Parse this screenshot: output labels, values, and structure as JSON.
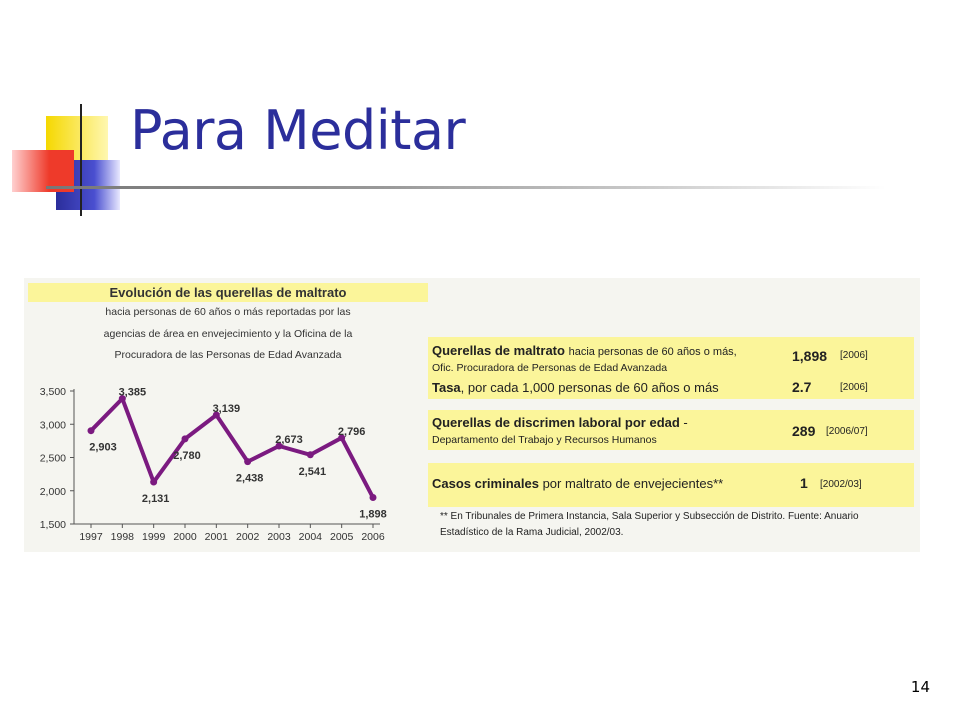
{
  "slide": {
    "title": "Para Meditar",
    "page_number": "14",
    "accent_colors": {
      "yellow": "#f5d800",
      "red": "#ee3a2a",
      "blue": "#2b2e9b"
    }
  },
  "chart_data": {
    "type": "line",
    "title": "Evolución de las querellas de maltrato",
    "subtitle_lines": [
      "hacia personas de 60 años o más reportadas por las",
      "agencias de área en envejecimiento y la Oficina de la",
      "Procuradora de las Personas de Edad Avanzada"
    ],
    "categories": [
      "1997",
      "1998",
      "1999",
      "2000",
      "2001",
      "2002",
      "2003",
      "2004",
      "2005",
      "2006"
    ],
    "series": [
      {
        "values": [
          2903,
          3385,
          2131,
          2780,
          3139,
          2438,
          2673,
          2541,
          2796,
          1898
        ],
        "color": "#7b1a80"
      }
    ],
    "data_labels": [
      "2,903",
      "3,385",
      "2,131",
      "2,780",
      "3,139",
      "2,438",
      "2,673",
      "2,541",
      "2,796",
      "1,898"
    ],
    "ylim": [
      1500,
      3500
    ],
    "yticks": [
      "3,500",
      "3,000",
      "2,500",
      "2,000",
      "1,500"
    ],
    "grid": false
  },
  "side_table": {
    "row1": {
      "label_bold": "Querellas de maltrato",
      "label_rest": "hacia personas de 60 años o más,",
      "line2": "Ofic. Procuradora de Personas de Edad Avanzada",
      "value": "1,898",
      "year": "[2006]"
    },
    "row1b": {
      "label_bold": "Tasa",
      "label_rest": ", por cada 1,000 personas de 60 años o más",
      "value": "2.7",
      "year": "[2006]"
    },
    "row2": {
      "label_bold": "Querellas de discrimen laboral por edad",
      "label_rest": " -",
      "line2": "Departamento del Trabajo y Recursos Humanos",
      "value": "289",
      "year": "[2006/07]"
    },
    "row3": {
      "label_bold": "Casos criminales",
      "label_rest": " por maltrato de envejecientes**",
      "value": "1",
      "year": "[2002/03]"
    },
    "footnote_line1": "** En Tribunales de Primera Instancia, Sala Superior y Subsección de Distrito. Fuente: Anuario",
    "footnote_line2": "Estadístico de la Rama Judicial, 2002/03."
  }
}
